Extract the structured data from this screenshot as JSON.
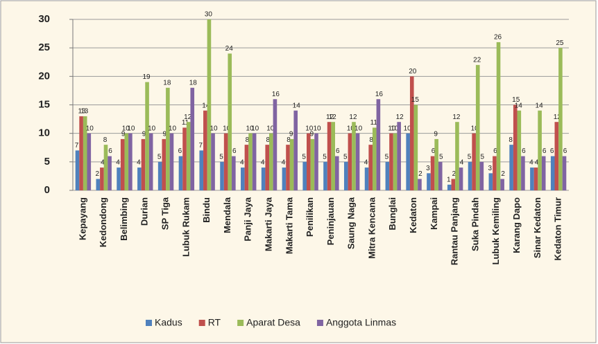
{
  "chart_data": {
    "type": "bar",
    "categories": [
      "Kepayang",
      "Kedondong",
      "Belimbing",
      "Durian",
      "SP Tiga",
      "Lubuk Rukam",
      "Bindu",
      "Mendala",
      "Panji Jaya",
      "Makarti Jaya",
      "Makarti Tama",
      "Penilikan",
      "Peninjauan",
      "Saung Naga",
      "Mitra Kencana",
      "Bunglai",
      "Kedaton",
      "Kampai",
      "Rantau Panjang",
      "Suka Pindah",
      "Lubuk Kemiling",
      "Karang Dapo",
      "Sinar Kedaton",
      "Kedaton Timur"
    ],
    "series": [
      {
        "name": "Kadus",
        "color": "#4f81bd",
        "values": [
          7,
          2,
          4,
          4,
          5,
          6,
          7,
          5,
          4,
          4,
          4,
          5,
          5,
          5,
          4,
          5,
          10,
          3,
          1,
          5,
          3,
          8,
          4,
          6
        ]
      },
      {
        "name": "RT",
        "color": "#c0504d",
        "values": [
          13,
          4,
          9,
          9,
          9,
          11,
          14,
          10,
          8,
          8,
          8,
          10,
          12,
          10,
          8,
          10,
          20,
          6,
          2,
          10,
          6,
          15,
          4,
          12
        ]
      },
      {
        "name": "Aparat Desa",
        "color": "#9bbb59",
        "values": [
          13,
          8,
          10,
          19,
          18,
          12,
          30,
          24,
          10,
          10,
          9,
          9,
          12,
          12,
          11,
          10,
          15,
          9,
          12,
          22,
          26,
          14,
          14,
          25
        ]
      },
      {
        "name": "Anggota Linmas",
        "color": "#8064a2",
        "values": [
          10,
          6,
          10,
          10,
          10,
          18,
          10,
          6,
          10,
          16,
          14,
          10,
          6,
          10,
          16,
          12,
          2,
          5,
          4,
          5,
          2,
          6,
          6,
          6
        ]
      }
    ],
    "ylim": [
      0,
      30
    ],
    "yticks": [
      0,
      5,
      10,
      15,
      20,
      25,
      30
    ],
    "grid": true
  }
}
